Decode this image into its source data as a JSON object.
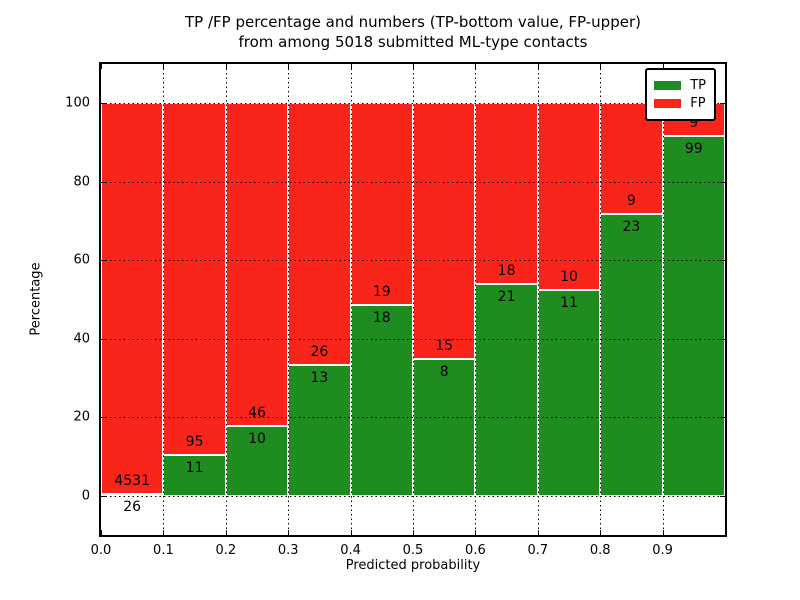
{
  "title": {
    "line1": "TP /FP percentage and numbers (TP-bottom value, FP-upper)",
    "line2": "from among 5018 submitted ML-type contacts"
  },
  "axes": {
    "xlabel": "Predicted probability",
    "ylabel": "Percentage",
    "x_tick_labels": [
      "0.0",
      "0.1",
      "0.2",
      "0.3",
      "0.4",
      "0.5",
      "0.6",
      "0.7",
      "0.8",
      "0.9"
    ],
    "y_tick_labels": [
      "0",
      "20",
      "40",
      "60",
      "80",
      "100"
    ],
    "y_tick_values": [
      0,
      20,
      40,
      60,
      80,
      100
    ]
  },
  "legend": {
    "items": [
      {
        "label": "TP",
        "color": "#1e8c1e"
      },
      {
        "label": "FP",
        "color": "#fa251a"
      }
    ]
  },
  "chart_data": {
    "type": "bar",
    "subtype": "stacked-percentage-histogram",
    "title": "TP /FP percentage and numbers (TP-bottom value, FP-upper) from among 5018 submitted ML-type contacts",
    "xlabel": "Predicted probability",
    "ylabel": "Percentage",
    "xlim": [
      0.0,
      1.0
    ],
    "ylim": [
      -10,
      110
    ],
    "grid": true,
    "legend_position": "upper right",
    "bin_width": 0.1,
    "bin_starts": [
      0.0,
      0.1,
      0.2,
      0.3,
      0.4,
      0.5,
      0.6,
      0.7,
      0.8,
      0.9
    ],
    "series": [
      {
        "name": "TP",
        "color": "#1e8c1e",
        "counts": [
          26,
          11,
          10,
          13,
          18,
          8,
          21,
          11,
          23,
          99
        ]
      },
      {
        "name": "FP",
        "color": "#fa251a",
        "counts": [
          4531,
          95,
          46,
          26,
          19,
          15,
          18,
          10,
          9,
          9
        ]
      }
    ],
    "tp_percentages": [
      0.57,
      10.38,
      17.86,
      33.33,
      48.65,
      34.78,
      53.85,
      52.38,
      71.88,
      91.67
    ],
    "total_contacts": 5018
  }
}
